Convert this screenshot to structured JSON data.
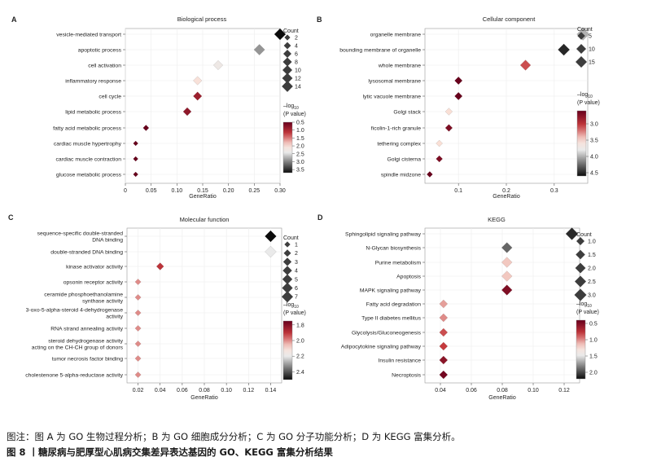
{
  "figure": {
    "note": "图注：图 A 为 GO 生物过程分析；B 为 GO 细胞成分分析；C 为 GO 分子功能分析；D 为 KEGG 富集分析。",
    "title": "图 8 丨糖尿病与肥厚型心肌病交集差异表达基因的 GO、KEGG 富集分析结果"
  },
  "chart_data": [
    {
      "panel": "A",
      "type": "scatter",
      "title": "Biological process",
      "xlabel": "GeneRatio",
      "xlim": [
        0,
        0.3
      ],
      "xticks": [
        "0",
        "0.05",
        "0.10",
        "0.15",
        "0.20",
        "0.25",
        "0.30"
      ],
      "grid": true,
      "terms": [
        "vesicle-mediated transport",
        "apoptotic process",
        "cell activation",
        "inflammatory response",
        "cell cycle",
        "lipid metabolic process",
        "fatty acid metabolic process",
        "cardiac muscle hypertrophy",
        "cardiac muscle contraction",
        "glucose metabolic process"
      ],
      "gene_ratio": [
        0.3,
        0.26,
        0.18,
        0.14,
        0.14,
        0.12,
        0.04,
        0.02,
        0.02,
        0.02
      ],
      "count": [
        15,
        13,
        9,
        7,
        7,
        6,
        2,
        1,
        1,
        1
      ],
      "neglog10_p": [
        3.8,
        2.9,
        2.3,
        2.0,
        0.9,
        0.8,
        0.5,
        0.5,
        0.5,
        0.5
      ],
      "size_legend": {
        "title": "Count",
        "values": [
          2,
          4,
          6,
          8,
          10,
          12,
          14
        ]
      },
      "color_legend": {
        "title_main": "–log",
        "title_sub": "10",
        "title_p": "(P value)",
        "ticks": [
          "0.5",
          "1.0",
          "1.5",
          "2.0",
          "2.5",
          "3.0",
          "3.5"
        ],
        "range": [
          0.5,
          3.7
        ]
      }
    },
    {
      "panel": "B",
      "type": "scatter",
      "title": "Cellular component",
      "xlabel": "GeneRatio",
      "xlim": [
        0.03,
        0.37
      ],
      "xticks": [
        "0.1",
        "0.2",
        "0.3"
      ],
      "grid": true,
      "terms": [
        "organelle membrane",
        "bounding membrane of organelle",
        "whole membrane",
        "lysosomal membrane",
        "lytic vacuole membrane",
        "Golgi stack",
        "ficolin-1-rich granule",
        "tethering complex",
        "Golgi cisterna",
        "spindle midzone"
      ],
      "gene_ratio": [
        0.36,
        0.32,
        0.24,
        0.1,
        0.1,
        0.08,
        0.08,
        0.06,
        0.06,
        0.04
      ],
      "count": [
        18,
        16,
        12,
        5,
        5,
        4,
        4,
        3,
        3,
        2
      ],
      "neglog10_p": [
        4.0,
        4.5,
        3.1,
        2.6,
        2.6,
        3.5,
        2.7,
        3.5,
        2.7,
        2.6
      ],
      "size_legend": {
        "title": "Count",
        "values": [
          5,
          10,
          15
        ]
      },
      "color_legend": {
        "title_main": "–log",
        "title_sub": "10",
        "title_p": "(P value)",
        "ticks": [
          "3.0",
          "3.5",
          "4.0",
          "4.5"
        ],
        "range": [
          2.6,
          4.6
        ]
      }
    },
    {
      "panel": "C",
      "type": "scatter",
      "title": "Molecular function",
      "xlabel": "GeneRatio",
      "xlim": [
        0.01,
        0.15
      ],
      "xticks": [
        "0.02",
        "0.04",
        "0.06",
        "0.08",
        "0.10",
        "0.12",
        "0.14"
      ],
      "grid": true,
      "terms": [
        [
          "sequence-specific double-stranded",
          "DNA binding"
        ],
        [
          "double-stranded DNA binding"
        ],
        [
          "kinase activator activity"
        ],
        [
          "opsonin receptor activity"
        ],
        [
          "ceramide phosphoethanolamine",
          "synthase activity"
        ],
        [
          "3-oxo-5-alpha-steroid 4-dehydrogenase",
          "activity"
        ],
        [
          "RNA strand annealing activity"
        ],
        [
          "steroid dehydrogenase activity",
          "acting on the CH-CH group of donors"
        ],
        [
          "tumor necrosis factor binding"
        ],
        [
          "cholestenone 5-alpha-reductase activity"
        ]
      ],
      "gene_ratio": [
        0.14,
        0.14,
        0.04,
        0.02,
        0.02,
        0.02,
        0.02,
        0.02,
        0.02,
        0.02
      ],
      "count": [
        7,
        7,
        2,
        1,
        1,
        1,
        1,
        1,
        1,
        1
      ],
      "neglog10_p": [
        2.5,
        2.2,
        1.9,
        2.0,
        2.0,
        2.0,
        2.0,
        2.0,
        2.0,
        2.0
      ],
      "size_legend": {
        "title": "Count",
        "values": [
          1,
          2,
          3,
          4,
          5,
          6,
          7
        ]
      },
      "color_legend": {
        "title_main": "–log",
        "title_sub": "10",
        "title_p": "(P value)",
        "ticks": [
          "1.8",
          "2.0",
          "2.2",
          "2.4"
        ],
        "range": [
          1.75,
          2.5
        ]
      }
    },
    {
      "panel": "D",
      "type": "scatter",
      "title": "KEGG",
      "xlabel": "GeneRatio",
      "xlim": [
        0.03,
        0.13
      ],
      "xticks": [
        "0.04",
        "0.06",
        "0.08",
        "0.10",
        "0.12"
      ],
      "grid": true,
      "terms": [
        "Sphingolipid signaling pathway",
        "N-Glycan biosynthesis",
        "Purine metabolism",
        "Apoptosis",
        "MAPK signaling pathway",
        "Fatty acid degradation",
        "Type II diabetes mellitus",
        "Glycolysis/Gluconeogenesis",
        "Adipocytokine signaling pathway",
        "Insulin resistance",
        "Necroptosis"
      ],
      "gene_ratio": [
        0.125,
        0.083,
        0.083,
        0.083,
        0.083,
        0.042,
        0.042,
        0.042,
        0.042,
        0.042,
        0.042
      ],
      "count": [
        3,
        2,
        2,
        2,
        2,
        1,
        1,
        1,
        1,
        1,
        1
      ],
      "neglog10_p": [
        2.1,
        1.9,
        1.15,
        1.15,
        0.5,
        1.05,
        1.0,
        0.85,
        0.8,
        0.55,
        0.45
      ],
      "size_legend": {
        "title": "Count",
        "values": [
          "1.0",
          "1.5",
          "2.0",
          "2.5",
          "3.0"
        ]
      },
      "color_legend": {
        "title_main": "–log",
        "title_sub": "10",
        "title_p": "(P value)",
        "ticks": [
          "0.5",
          "1.0",
          "1.5",
          "2.0"
        ],
        "range": [
          0.4,
          2.2
        ]
      }
    }
  ]
}
